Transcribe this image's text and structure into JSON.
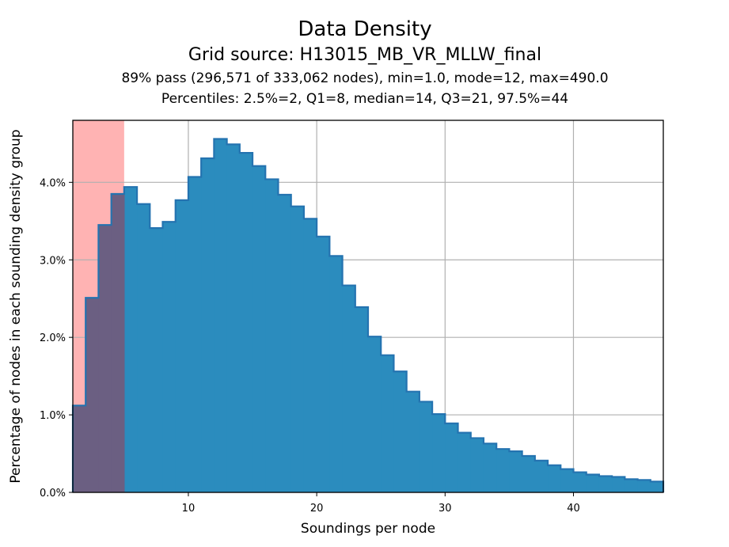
{
  "chart_data": {
    "type": "bar",
    "title": "Data Density",
    "subtitle": "Grid source: H13015_MB_VR_MLLW_final",
    "info_lines": [
      "89% pass (296,571 of 333,062 nodes), min=1.0, mode=12, max=490.0",
      "Percentiles: 2.5%=2, Q1=8, median=14, Q3=21, 97.5%=44"
    ],
    "xlabel": "Soundings per node",
    "ylabel": "Percentage of nodes in each sounding density group",
    "xlim": [
      1,
      47
    ],
    "ylim": [
      0,
      4.8
    ],
    "x_ticks": [
      10,
      20,
      30,
      40
    ],
    "y_ticks": [
      {
        "value": 0,
        "label": "0.0%"
      },
      {
        "value": 1,
        "label": "1.0%"
      },
      {
        "value": 2,
        "label": "2.0%"
      },
      {
        "value": 3,
        "label": "3.0%"
      },
      {
        "value": 4,
        "label": "4.0%"
      }
    ],
    "grid": true,
    "bin_edges": [
      1,
      2,
      3,
      4,
      5,
      6,
      7,
      8,
      9,
      10,
      11,
      12,
      13,
      14,
      15,
      16,
      17,
      18,
      19,
      20,
      21,
      22,
      23,
      24,
      25,
      26,
      27,
      28,
      29,
      30,
      31,
      32,
      33,
      34,
      35,
      36,
      37,
      38,
      39,
      40,
      41,
      42,
      43,
      44,
      45,
      46,
      47
    ],
    "values": [
      1.12,
      2.51,
      3.45,
      3.85,
      3.94,
      3.72,
      3.41,
      3.49,
      3.77,
      4.07,
      4.31,
      4.56,
      4.49,
      4.38,
      4.21,
      4.04,
      3.84,
      3.69,
      3.53,
      3.3,
      3.05,
      2.67,
      2.39,
      2.01,
      1.77,
      1.56,
      1.3,
      1.17,
      1.01,
      0.89,
      0.77,
      0.7,
      0.63,
      0.56,
      0.53,
      0.47,
      0.41,
      0.35,
      0.3,
      0.26,
      0.23,
      0.21,
      0.2,
      0.17,
      0.16,
      0.14
    ],
    "fail_region": {
      "x_start": 1,
      "x_end": 5
    },
    "colors": {
      "bar_fill": "#2b8cbe",
      "bar_edge": "#2473b0",
      "fail_shade": "#ffb3b3",
      "overlap": "#6b5f82",
      "grid": "#b0b0b0"
    }
  }
}
